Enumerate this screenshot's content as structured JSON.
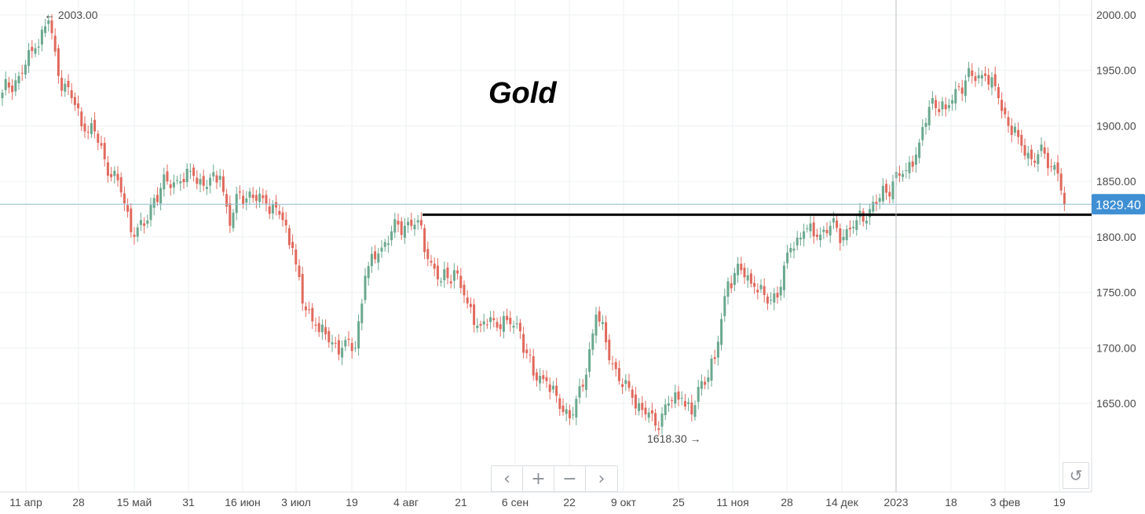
{
  "chart_data": {
    "type": "candlestick",
    "title": "Gold",
    "y_ticks": [
      2000,
      1950,
      1900,
      1850,
      1800,
      1750,
      1700,
      1650
    ],
    "y_tick_labels": [
      "2000.00",
      "1950.00",
      "1900.00",
      "1850.00",
      "1800.00",
      "1750.00",
      "1700.00",
      "1650.00"
    ],
    "x_tick_labels": [
      "11 апр",
      "28",
      "15 май",
      "31",
      "16 июн",
      "3 июл",
      "19",
      "4 авг",
      "21",
      "6 сен",
      "22",
      "9 окт",
      "25",
      "11 ноя",
      "28",
      "14 дек",
      "2023",
      "18",
      "3 фев",
      "19"
    ],
    "last_price": 1829.4,
    "last_price_label": "1829.40",
    "high_annotation": "← 2003.00",
    "low_annotation": "1618.30 →",
    "resistance_level": 1820,
    "colors": {
      "up": "#6aa88e",
      "down": "#e0695c",
      "last_price_bg": "#3f8fd3",
      "grid": "#edf0f2"
    },
    "anchors": [
      [
        0,
        1930
      ],
      [
        5,
        1945
      ],
      [
        10,
        1970
      ],
      [
        14,
        1995
      ],
      [
        17,
        1945
      ],
      [
        21,
        1925
      ],
      [
        25,
        1895
      ],
      [
        28,
        1895
      ],
      [
        31,
        1870
      ],
      [
        36,
        1840
      ],
      [
        40,
        1800
      ],
      [
        43,
        1810
      ],
      [
        46,
        1835
      ],
      [
        50,
        1850
      ],
      [
        54,
        1850
      ],
      [
        58,
        1855
      ],
      [
        62,
        1845
      ],
      [
        66,
        1855
      ],
      [
        69,
        1810
      ],
      [
        72,
        1840
      ],
      [
        76,
        1835
      ],
      [
        80,
        1830
      ],
      [
        84,
        1820
      ],
      [
        88,
        1790
      ],
      [
        91,
        1740
      ],
      [
        95,
        1720
      ],
      [
        99,
        1705
      ],
      [
        103,
        1700
      ],
      [
        107,
        1700
      ],
      [
        110,
        1765
      ],
      [
        114,
        1785
      ],
      [
        118,
        1805
      ],
      [
        122,
        1810
      ],
      [
        126,
        1815
      ],
      [
        129,
        1780
      ],
      [
        133,
        1760
      ],
      [
        137,
        1770
      ],
      [
        141,
        1740
      ],
      [
        145,
        1720
      ],
      [
        149,
        1725
      ],
      [
        153,
        1725
      ],
      [
        157,
        1715
      ],
      [
        161,
        1675
      ],
      [
        165,
        1670
      ],
      [
        169,
        1645
      ],
      [
        173,
        1640
      ],
      [
        176,
        1665
      ],
      [
        180,
        1730
      ],
      [
        183,
        1705
      ],
      [
        187,
        1670
      ],
      [
        191,
        1655
      ],
      [
        195,
        1640
      ],
      [
        198,
        1630
      ],
      [
        202,
        1650
      ],
      [
        206,
        1655
      ],
      [
        209,
        1640
      ],
      [
        212,
        1670
      ],
      [
        216,
        1690
      ],
      [
        220,
        1760
      ],
      [
        224,
        1770
      ],
      [
        228,
        1755
      ],
      [
        232,
        1740
      ],
      [
        236,
        1755
      ],
      [
        239,
        1790
      ],
      [
        243,
        1805
      ],
      [
        247,
        1800
      ],
      [
        251,
        1810
      ],
      [
        255,
        1800
      ],
      [
        259,
        1815
      ],
      [
        263,
        1825
      ],
      [
        266,
        1835
      ],
      [
        270,
        1850
      ],
      [
        274,
        1860
      ],
      [
        278,
        1885
      ],
      [
        282,
        1925
      ],
      [
        286,
        1915
      ],
      [
        290,
        1935
      ],
      [
        294,
        1945
      ],
      [
        298,
        1945
      ],
      [
        302,
        1925
      ],
      [
        305,
        1900
      ],
      [
        308,
        1890
      ],
      [
        312,
        1870
      ],
      [
        316,
        1875
      ],
      [
        320,
        1857
      ],
      [
        322,
        1829
      ]
    ]
  },
  "toolbar": {
    "prev": "‹",
    "zoom_in": "+",
    "zoom_out": "−",
    "next": "›",
    "reset": "↺"
  }
}
